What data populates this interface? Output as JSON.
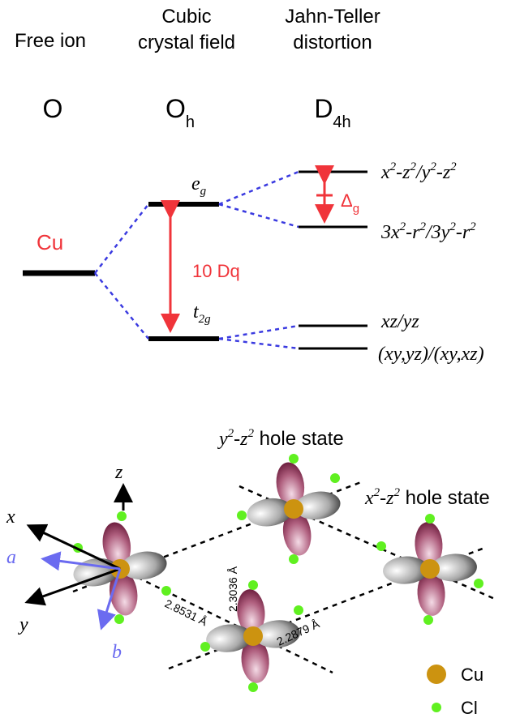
{
  "columns": [
    {
      "title": [
        "Free ion"
      ],
      "symmetry": {
        "main": "O"
      }
    },
    {
      "title": [
        "Cubic",
        "crystal field"
      ],
      "symmetry": {
        "main": "O",
        "sub": "h"
      }
    },
    {
      "title": [
        "Jahn-Teller",
        "distortion"
      ],
      "symmetry": {
        "main": "D",
        "sub": "4h"
      }
    }
  ],
  "free_ion_label": "Cu",
  "cubic_levels": [
    {
      "main": "e",
      "sub": "g"
    },
    {
      "main": "t",
      "sub": "2g"
    }
  ],
  "splitting": "10 Dq",
  "jt_splitting": {
    "main": "Δ",
    "sub": "g"
  },
  "jt_levels": [
    [
      "x",
      "2",
      "-z",
      "2",
      "/y",
      "2",
      "-z",
      "2"
    ],
    [
      "3x",
      "2",
      "-r",
      "2",
      "/3y",
      "2",
      "-r",
      "2"
    ],
    [
      "xz/yz"
    ],
    [
      "(xy,yz)/(xy,xz)"
    ]
  ],
  "hole_states": [
    [
      "y",
      "2",
      "-z",
      "2",
      " hole state"
    ],
    [
      "x",
      "2",
      "-z",
      "2",
      " hole state"
    ]
  ],
  "axes": {
    "x": "x",
    "y": "y",
    "z": "z",
    "a": "a",
    "b": "b"
  },
  "distances": [
    "2.8531 Å",
    "2.3036 Å",
    "2.2879 Å"
  ],
  "legend": [
    "Cu",
    "Cl"
  ]
}
